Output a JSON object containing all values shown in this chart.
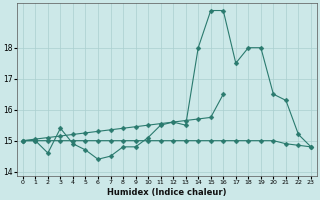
{
  "xlabel": "Humidex (Indice chaleur)",
  "x_values": [
    0,
    1,
    2,
    3,
    4,
    5,
    6,
    7,
    8,
    9,
    10,
    11,
    12,
    13,
    14,
    15,
    16,
    17,
    18,
    19,
    20,
    21,
    22,
    23
  ],
  "line1": [
    15.0,
    15.0,
    14.6,
    15.4,
    14.9,
    14.7,
    14.4,
    14.5,
    14.8,
    14.8,
    15.1,
    15.5,
    15.6,
    15.5,
    18.0,
    19.2,
    19.2,
    17.5,
    18.0,
    18.0,
    16.5,
    16.3,
    15.2,
    14.8
  ],
  "line2": [
    15.0,
    15.05,
    15.1,
    15.15,
    15.2,
    15.25,
    15.3,
    15.35,
    15.4,
    15.45,
    15.5,
    15.55,
    15.6,
    15.65,
    15.7,
    15.75,
    16.5,
    null,
    null,
    null,
    null,
    null,
    null,
    null
  ],
  "line3": [
    15.0,
    15.0,
    15.0,
    15.0,
    15.0,
    15.0,
    15.0,
    15.0,
    15.0,
    15.0,
    15.0,
    15.0,
    15.0,
    15.0,
    15.0,
    15.0,
    15.0,
    15.0,
    15.0,
    15.0,
    15.0,
    14.9,
    14.85,
    14.8
  ],
  "ylim": [
    13.85,
    19.45
  ],
  "yticks": [
    14,
    15,
    16,
    17,
    18
  ],
  "xticks": [
    0,
    1,
    2,
    3,
    4,
    5,
    6,
    7,
    8,
    9,
    10,
    11,
    12,
    13,
    14,
    15,
    16,
    17,
    18,
    19,
    20,
    21,
    22,
    23
  ],
  "line_color": "#2a7a6e",
  "bg_color": "#cce8e8",
  "grid_color": "#aacfcf",
  "grid_major_color": "#b8d8d8"
}
